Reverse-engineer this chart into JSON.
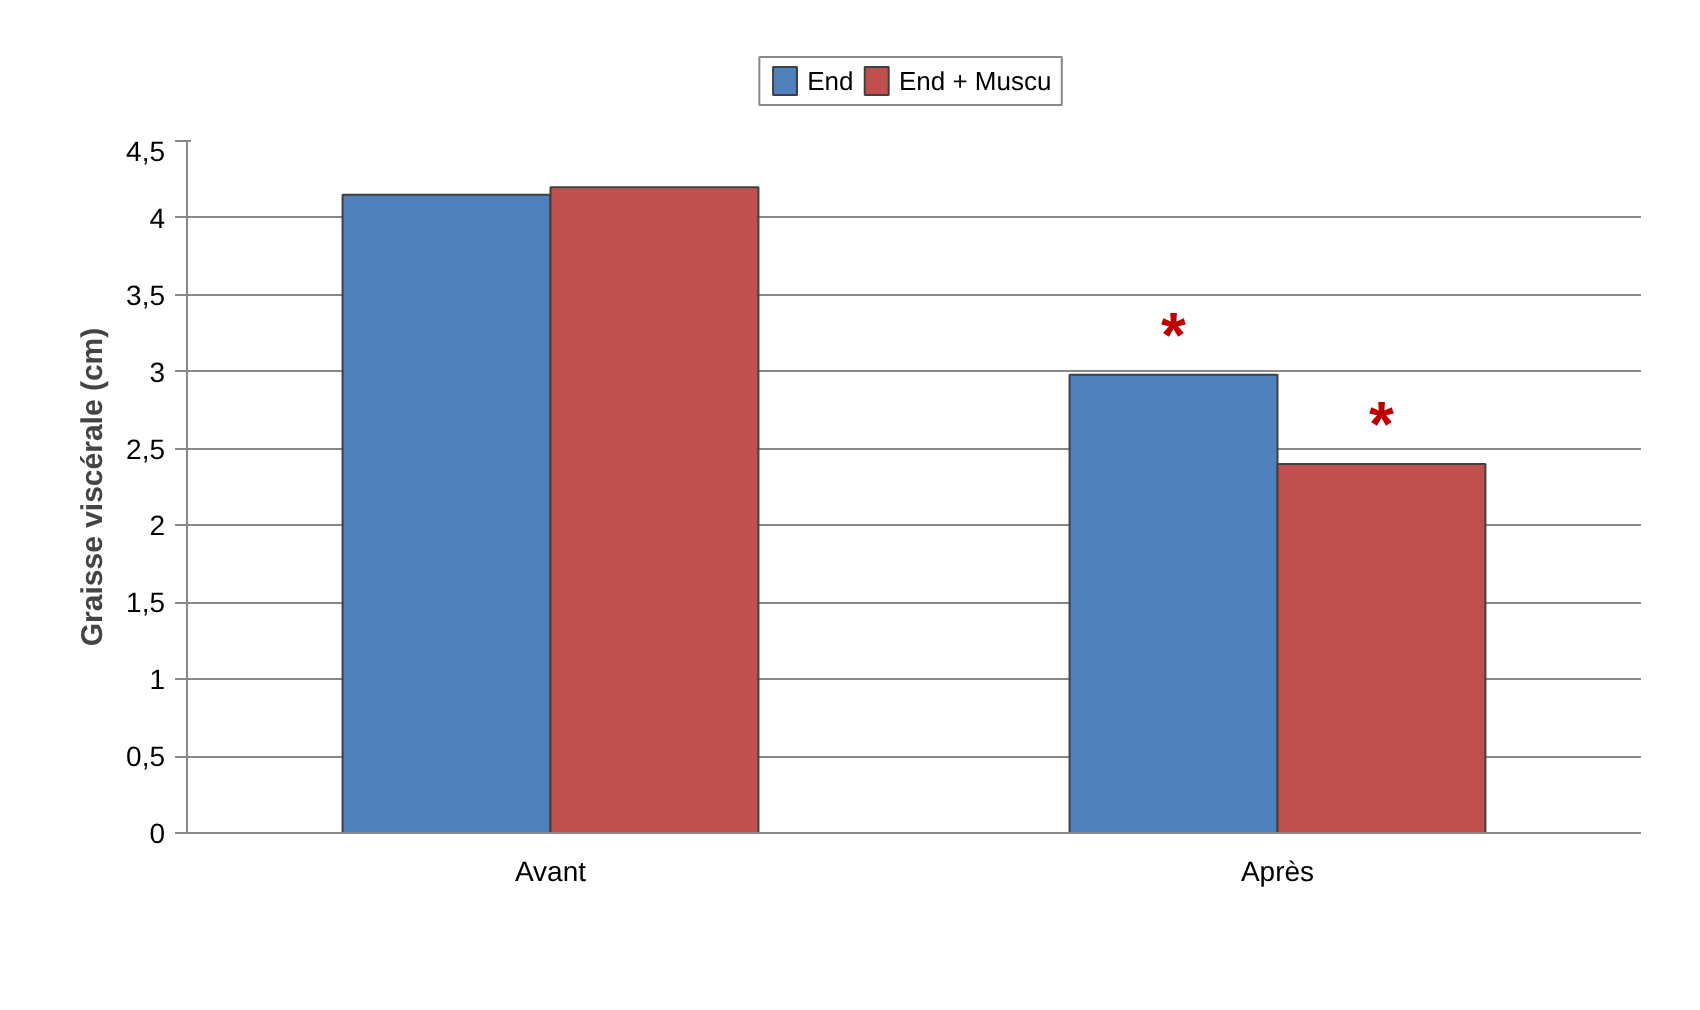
{
  "chart_data": {
    "type": "bar",
    "ylabel": "Graisse viscérale (cm)",
    "categories": [
      "Avant",
      "Après"
    ],
    "series": [
      {
        "name": "End",
        "color": "#4f81bd",
        "values": [
          4.15,
          2.98
        ]
      },
      {
        "name": "End + Muscu",
        "color": "#c0504d",
        "values": [
          4.2,
          2.4
        ]
      }
    ],
    "ylim": [
      0,
      4.5
    ],
    "yticks": [
      0,
      {
        "value": 0.5,
        "label": "0,5"
      },
      1,
      {
        "value": 1.5,
        "label": "1,5"
      },
      2,
      {
        "value": 2.5,
        "label": "2,5"
      },
      3,
      {
        "value": 3.5,
        "label": "3,5"
      },
      4,
      {
        "value": 4.5,
        "label": "4,5"
      }
    ],
    "grid": "y",
    "legend": "top",
    "annotations": [
      {
        "text": "*",
        "x": "Après",
        "y": 2.98
      },
      {
        "text": "*",
        "x": "Après",
        "y": 2.4
      }
    ]
  }
}
